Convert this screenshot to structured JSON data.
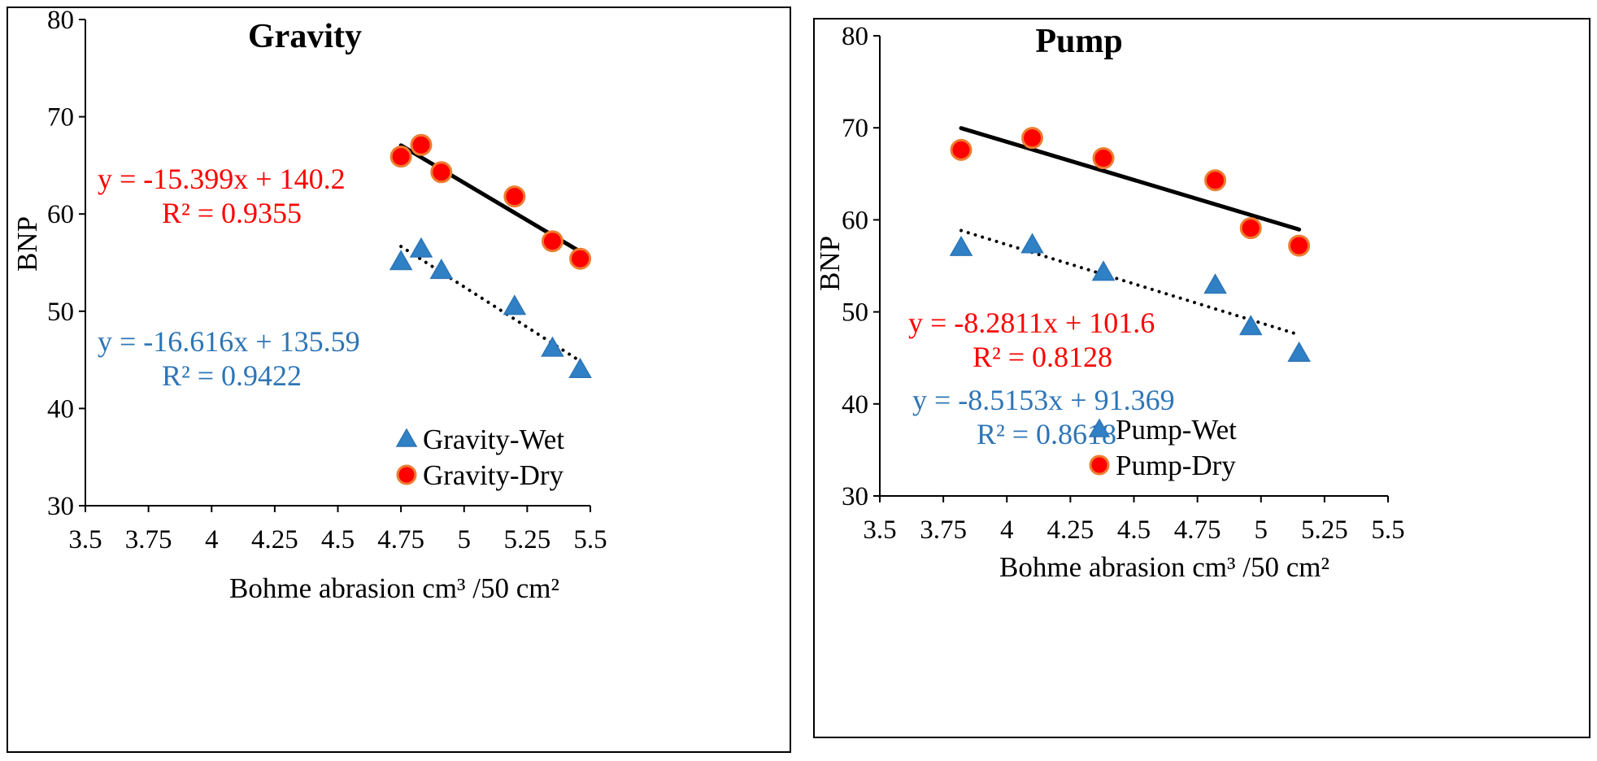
{
  "colors": {
    "dry": "#ff0000",
    "dry_stroke": "#ed7d31",
    "wet": "#2f80c5",
    "wet_stroke": "#2e75b6",
    "dry_eq": "#ff0000",
    "wet_eq": "#2e75b6",
    "trend": "#000000"
  },
  "chart_data": [
    {
      "type": "scatter",
      "title": "Gravity",
      "xlabel": "Bohme abrasion cm³ /50 cm²",
      "ylabel": "BNP",
      "xlim": [
        3.5,
        5.5
      ],
      "ylim": [
        30,
        80
      ],
      "xticks": [
        3.5,
        3.75,
        4,
        4.25,
        4.5,
        4.75,
        5,
        5.25,
        5.5
      ],
      "xtick_labels": [
        "3.5",
        "3.75",
        "4",
        "4.25",
        "4.5",
        "4.75",
        "5",
        "5.25",
        "5.5"
      ],
      "yticks": [
        30,
        40,
        50,
        60,
        70,
        80
      ],
      "ytick_labels": [
        "30",
        "40",
        "50",
        "60",
        "70",
        "80"
      ],
      "series": [
        {
          "name": "Gravity-Wet",
          "marker": "triangle",
          "x": [
            4.75,
            4.83,
            4.91,
            5.2,
            5.35,
            5.46
          ],
          "y": [
            55.1,
            56.4,
            54.2,
            50.5,
            46.2,
            44.0
          ],
          "trend": {
            "style": "dotted",
            "slope": -16.616,
            "intercept": 135.59,
            "equation": "y = -16.616x + 135.59",
            "r2": "R² = 0.9422"
          }
        },
        {
          "name": "Gravity-Dry",
          "marker": "circle",
          "x": [
            4.75,
            4.83,
            4.91,
            5.2,
            5.35,
            5.46
          ],
          "y": [
            65.9,
            67.1,
            64.3,
            61.8,
            57.2,
            55.4
          ],
          "trend": {
            "style": "solid",
            "slope": -15.399,
            "intercept": 140.2,
            "equation": "y = -15.399x + 140.2",
            "r2": "R² = 0.9355"
          }
        }
      ]
    },
    {
      "type": "scatter",
      "title": "Pump",
      "xlabel": "Bohme abrasion cm³ /50 cm²",
      "ylabel": "BNP",
      "xlim": [
        3.5,
        5.5
      ],
      "ylim": [
        30,
        80
      ],
      "xticks": [
        3.5,
        3.75,
        4,
        4.25,
        4.5,
        4.75,
        5,
        5.25,
        5.5
      ],
      "xtick_labels": [
        "3.5",
        "3.75",
        "4",
        "4.25",
        "4.5",
        "4.75",
        "5",
        "5.25",
        "5.5"
      ],
      "yticks": [
        30,
        40,
        50,
        60,
        70,
        80
      ],
      "ytick_labels": [
        "30",
        "40",
        "50",
        "60",
        "70",
        "80"
      ],
      "series": [
        {
          "name": "Pump-Wet",
          "marker": "triangle",
          "x": [
            3.82,
            4.1,
            4.38,
            4.82,
            4.96,
            5.15
          ],
          "y": [
            57.0,
            57.3,
            54.3,
            52.9,
            48.4,
            45.5
          ],
          "trend": {
            "style": "dotted",
            "slope": -8.5153,
            "intercept": 91.369,
            "equation": "y = -8.5153x + 91.369",
            "r2": "R² = 0.8618"
          }
        },
        {
          "name": "Pump-Dry",
          "marker": "circle",
          "x": [
            3.82,
            4.1,
            4.38,
            4.82,
            4.96,
            5.15
          ],
          "y": [
            67.6,
            68.9,
            66.7,
            64.3,
            59.1,
            57.2
          ],
          "trend": {
            "style": "solid",
            "slope": -8.2811,
            "intercept": 101.6,
            "equation": "y = -8.2811x + 101.6",
            "r2": "R² = 0.8128"
          }
        }
      ]
    }
  ]
}
